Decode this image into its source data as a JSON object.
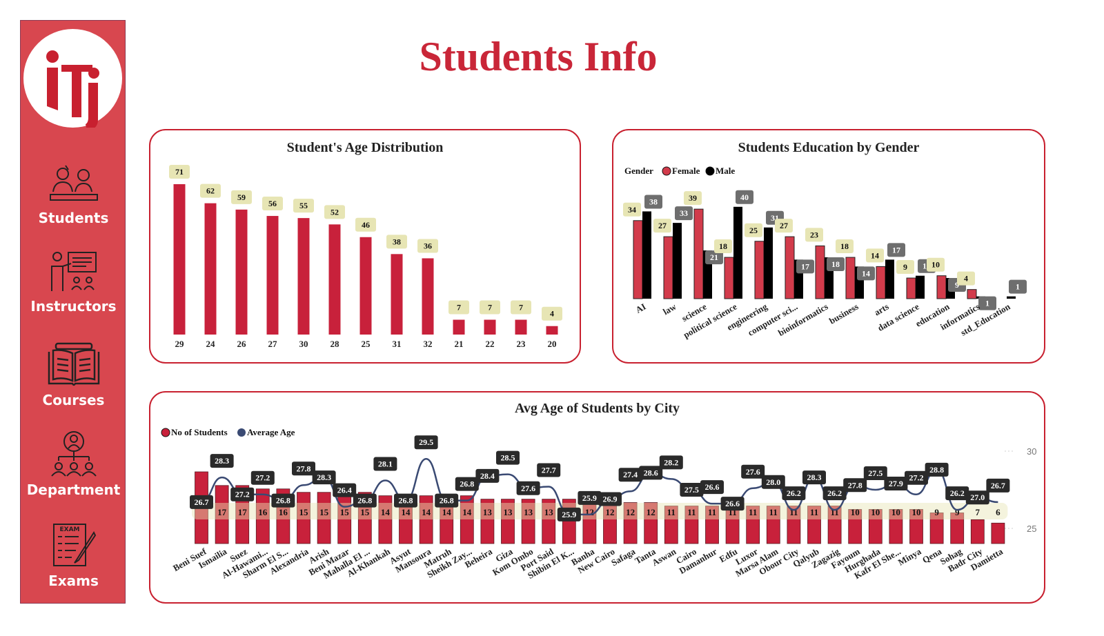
{
  "page": {
    "title": "Students Info"
  },
  "sidebar": {
    "items": [
      {
        "label": "Students",
        "icon": "students-icon"
      },
      {
        "label": "Instructors",
        "icon": "instructor-icon"
      },
      {
        "label": "Courses",
        "icon": "book-icon"
      },
      {
        "label": "Department",
        "icon": "department-icon"
      },
      {
        "label": "Exams",
        "icon": "exam-icon"
      }
    ],
    "exam_icon_text": "EXAM",
    "colors": {
      "background": "#d8474f",
      "text": "#ffffff"
    }
  },
  "colors": {
    "accent": "#c8213b",
    "female": "#d23b4b",
    "male": "#000000",
    "line": "#3a4a73",
    "label_bg": "#e7e5b4",
    "label_dark": "#2a2a2a",
    "label_gray": "#6e6e6e"
  },
  "chart_data": [
    {
      "type": "bar",
      "title": "Student's Age Distribution",
      "categories": [
        "29",
        "24",
        "26",
        "27",
        "30",
        "28",
        "25",
        "31",
        "32",
        "21",
        "22",
        "23",
        "20"
      ],
      "values": [
        71,
        62,
        59,
        56,
        55,
        52,
        46,
        38,
        36,
        7,
        7,
        7,
        4
      ]
    },
    {
      "type": "bar",
      "title": "Students Education by Gender",
      "legend": {
        "title": "Gender",
        "position": "top-left"
      },
      "categories": [
        "AI",
        "law",
        "science",
        "political science",
        "engineering",
        "computer sci...",
        "bioinformatics",
        "business",
        "arts",
        "data science",
        "education",
        "informatics",
        "std_Education"
      ],
      "series": [
        {
          "name": "Female",
          "values": [
            34,
            27,
            39,
            18,
            25,
            27,
            23,
            18,
            14,
            9,
            10,
            4,
            0
          ]
        },
        {
          "name": "Male",
          "values": [
            38,
            33,
            21,
            40,
            31,
            17,
            18,
            14,
            17,
            10,
            9,
            1,
            1
          ]
        }
      ]
    },
    {
      "type": "bar",
      "title": "Avg Age of Students by City",
      "legend": {
        "position": "top-left"
      },
      "categories": [
        "Beni Suef",
        "Ismailia",
        "Suez",
        "Al-Hawami...",
        "Sharm El S...",
        "Alexandria",
        "Arish",
        "Beni Mazar",
        "Mahalla El ...",
        "Al-Khankah",
        "Asyut",
        "Mansoura",
        "Matruh",
        "Sheikh Zay...",
        "Beheira",
        "Giza",
        "Kom Ombo",
        "Port Said",
        "Shibin El K...",
        "Banha",
        "New Cairo",
        "Safaga",
        "Tanta",
        "Aswan",
        "Cairo",
        "Damanhur",
        "Edfu",
        "Luxor",
        "Marsa Alam",
        "Obour City",
        "Qalyub",
        "Zagazig",
        "Fayoum",
        "Hurghada",
        "Kafr El She...",
        "Minya",
        "Qena",
        "Sohag",
        "Badr City",
        "Damietta"
      ],
      "series": [
        {
          "name": "No of Students",
          "values": [
            21,
            17,
            17,
            16,
            16,
            15,
            15,
            15,
            15,
            14,
            14,
            14,
            14,
            14,
            13,
            13,
            13,
            13,
            13,
            12,
            12,
            12,
            12,
            11,
            11,
            11,
            11,
            11,
            11,
            11,
            11,
            11,
            10,
            10,
            10,
            10,
            9,
            9,
            7,
            6
          ]
        },
        {
          "name": "Average Age",
          "values": [
            26.7,
            28.3,
            27.2,
            27.2,
            26.8,
            27.8,
            28.3,
            26.4,
            26.8,
            28.1,
            26.8,
            29.5,
            26.8,
            26.8,
            28.4,
            28.5,
            27.6,
            27.7,
            25.9,
            25.9,
            26.9,
            27.4,
            28.6,
            28.2,
            27.5,
            26.6,
            26.6,
            27.6,
            28.0,
            26.2,
            28.3,
            26.2,
            27.8,
            27.5,
            27.9,
            27.2,
            28.8,
            26.2,
            27.0,
            26.7
          ]
        }
      ],
      "secondary_axis": {
        "ticks": [
          25,
          30
        ]
      }
    }
  ]
}
